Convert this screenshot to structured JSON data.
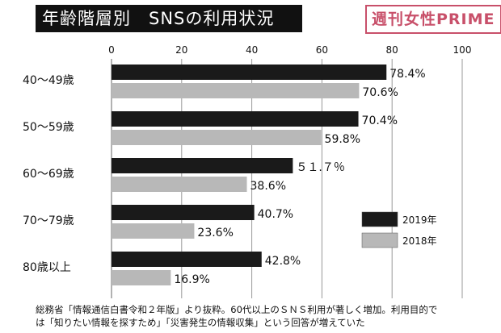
{
  "title": "年齢階層別　SNSの利用状況",
  "brand": "週刊女性PRIME",
  "chart_data": {
    "type": "bar",
    "orientation": "horizontal",
    "categories": [
      "40〜49歳",
      "50〜59歳",
      "60〜69歳",
      "70〜79歳",
      "80歳以上"
    ],
    "series": [
      {
        "name": "2019年",
        "color": "#1a1a1a",
        "values": [
          78.4,
          70.4,
          51.7,
          40.7,
          42.8
        ],
        "labels": [
          "78.4%",
          "70.4%",
          "５１.７％",
          "40.7%",
          "42.8%"
        ]
      },
      {
        "name": "2018年",
        "color": "#b8b8b8",
        "values": [
          70.6,
          59.8,
          38.6,
          23.6,
          16.9
        ],
        "labels": [
          "70.6%",
          "59.8%",
          "38.6%",
          "23.6%",
          "16.9%"
        ]
      }
    ],
    "xlim": [
      0,
      100
    ],
    "ticks": [
      0,
      20,
      40,
      60,
      80,
      100
    ],
    "tick_labels": [
      "0",
      "20",
      "40",
      "60",
      "80",
      "100"
    ],
    "grid": true,
    "legend_position": "bottom-right"
  },
  "footnote": {
    "line1": "総務省「情報通信白書令和２年版」より抜粋。60代以上のＳＮＳ利用が著しく増加。利用目的で",
    "line2": "は「知りたい情報を探すため」「災害発生の情報収集」という回答が増えていた"
  }
}
